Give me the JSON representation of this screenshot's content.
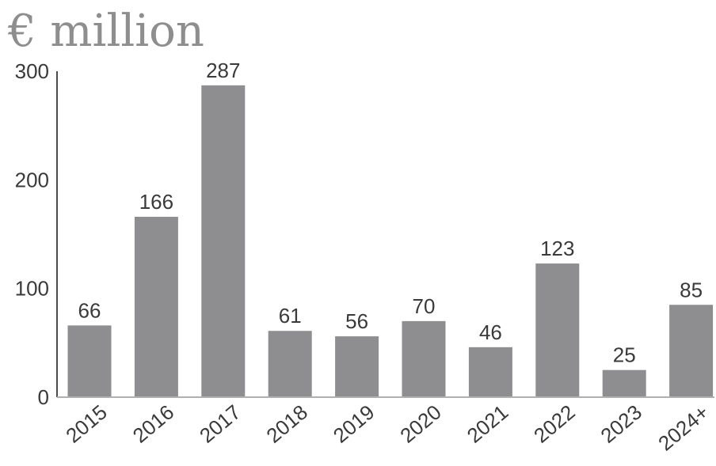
{
  "chart_data": {
    "type": "bar",
    "title": "€ million",
    "xlabel": "",
    "ylabel": "",
    "categories": [
      "2015",
      "2016",
      "2017",
      "2018",
      "2019",
      "2020",
      "2021",
      "2022",
      "2023",
      "2024+"
    ],
    "values": [
      66,
      166,
      287,
      61,
      56,
      70,
      46,
      123,
      25,
      85
    ],
    "ylim": [
      0,
      300
    ],
    "yticks": [
      "0",
      "100",
      "200",
      "300"
    ],
    "grid": false,
    "legend": "none",
    "colors": {
      "bar": "#8e8e90",
      "axis": "#4a4a4a",
      "title": "#8e8e8e",
      "text": "#3a3a3a"
    }
  }
}
